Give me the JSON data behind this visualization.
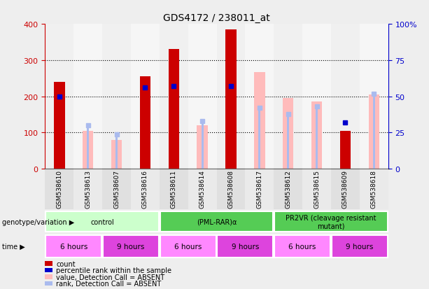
{
  "title": "GDS4172 / 238011_at",
  "samples": [
    "GSM538610",
    "GSM538613",
    "GSM538607",
    "GSM538616",
    "GSM538611",
    "GSM538614",
    "GSM538608",
    "GSM538617",
    "GSM538612",
    "GSM538615",
    "GSM538609",
    "GSM538618"
  ],
  "red_counts": [
    240,
    0,
    0,
    255,
    330,
    0,
    385,
    0,
    0,
    0,
    105,
    0
  ],
  "pink_values": [
    0,
    105,
    80,
    0,
    0,
    120,
    0,
    268,
    195,
    185,
    0,
    205
  ],
  "blue_rank_pct": [
    50,
    0,
    0,
    56,
    57,
    0,
    57,
    0,
    0,
    0,
    32,
    0
  ],
  "light_blue_rank_pct": [
    0,
    30,
    24,
    0,
    0,
    33,
    0,
    42,
    38,
    43,
    0,
    52
  ],
  "has_blue_dot": [
    true,
    false,
    false,
    true,
    true,
    false,
    true,
    false,
    false,
    false,
    true,
    false
  ],
  "has_light_blue_dot": [
    false,
    true,
    true,
    false,
    false,
    true,
    false,
    true,
    true,
    true,
    false,
    true
  ],
  "ylim_left": [
    0,
    400
  ],
  "ylim_right": [
    0,
    100
  ],
  "left_ticks": [
    0,
    100,
    200,
    300,
    400
  ],
  "right_ticks": [
    0,
    25,
    50,
    75,
    100
  ],
  "right_tick_labels": [
    "0",
    "25",
    "50",
    "75",
    "100%"
  ],
  "bar_color_red": "#cc0000",
  "bar_color_pink": "#ffbbbb",
  "dot_color_blue": "#0000cc",
  "dot_color_lightblue": "#aabbee",
  "legend_items": [
    {
      "color": "#cc0000",
      "label": "count"
    },
    {
      "color": "#0000cc",
      "label": "percentile rank within the sample"
    },
    {
      "color": "#ffbbbb",
      "label": "value, Detection Call = ABSENT"
    },
    {
      "color": "#aabbee",
      "label": "rank, Detection Call = ABSENT"
    }
  ],
  "genotype_colors": [
    "#ccffcc",
    "#55cc55",
    "#55cc55"
  ],
  "genotype_labels": [
    "control",
    "(PML-RAR)α",
    "PR2VR (cleavage resistant\nmutant)"
  ],
  "genotype_ranges": [
    [
      0,
      4
    ],
    [
      4,
      8
    ],
    [
      8,
      12
    ]
  ],
  "time_ranges": [
    [
      0,
      2
    ],
    [
      2,
      4
    ],
    [
      4,
      6
    ],
    [
      6,
      8
    ],
    [
      8,
      10
    ],
    [
      10,
      12
    ]
  ],
  "time_labels": [
    "6 hours",
    "9 hours",
    "6 hours",
    "9 hours",
    "6 hours",
    "9 hours"
  ],
  "time_colors": [
    "#ff88ff",
    "#dd44dd",
    "#ff88ff",
    "#dd44dd",
    "#ff88ff",
    "#dd44dd"
  ],
  "bg_color": "#eeeeee",
  "plot_bg": "#ffffff",
  "left_axis_color": "#cc0000",
  "right_axis_color": "#0000cc"
}
